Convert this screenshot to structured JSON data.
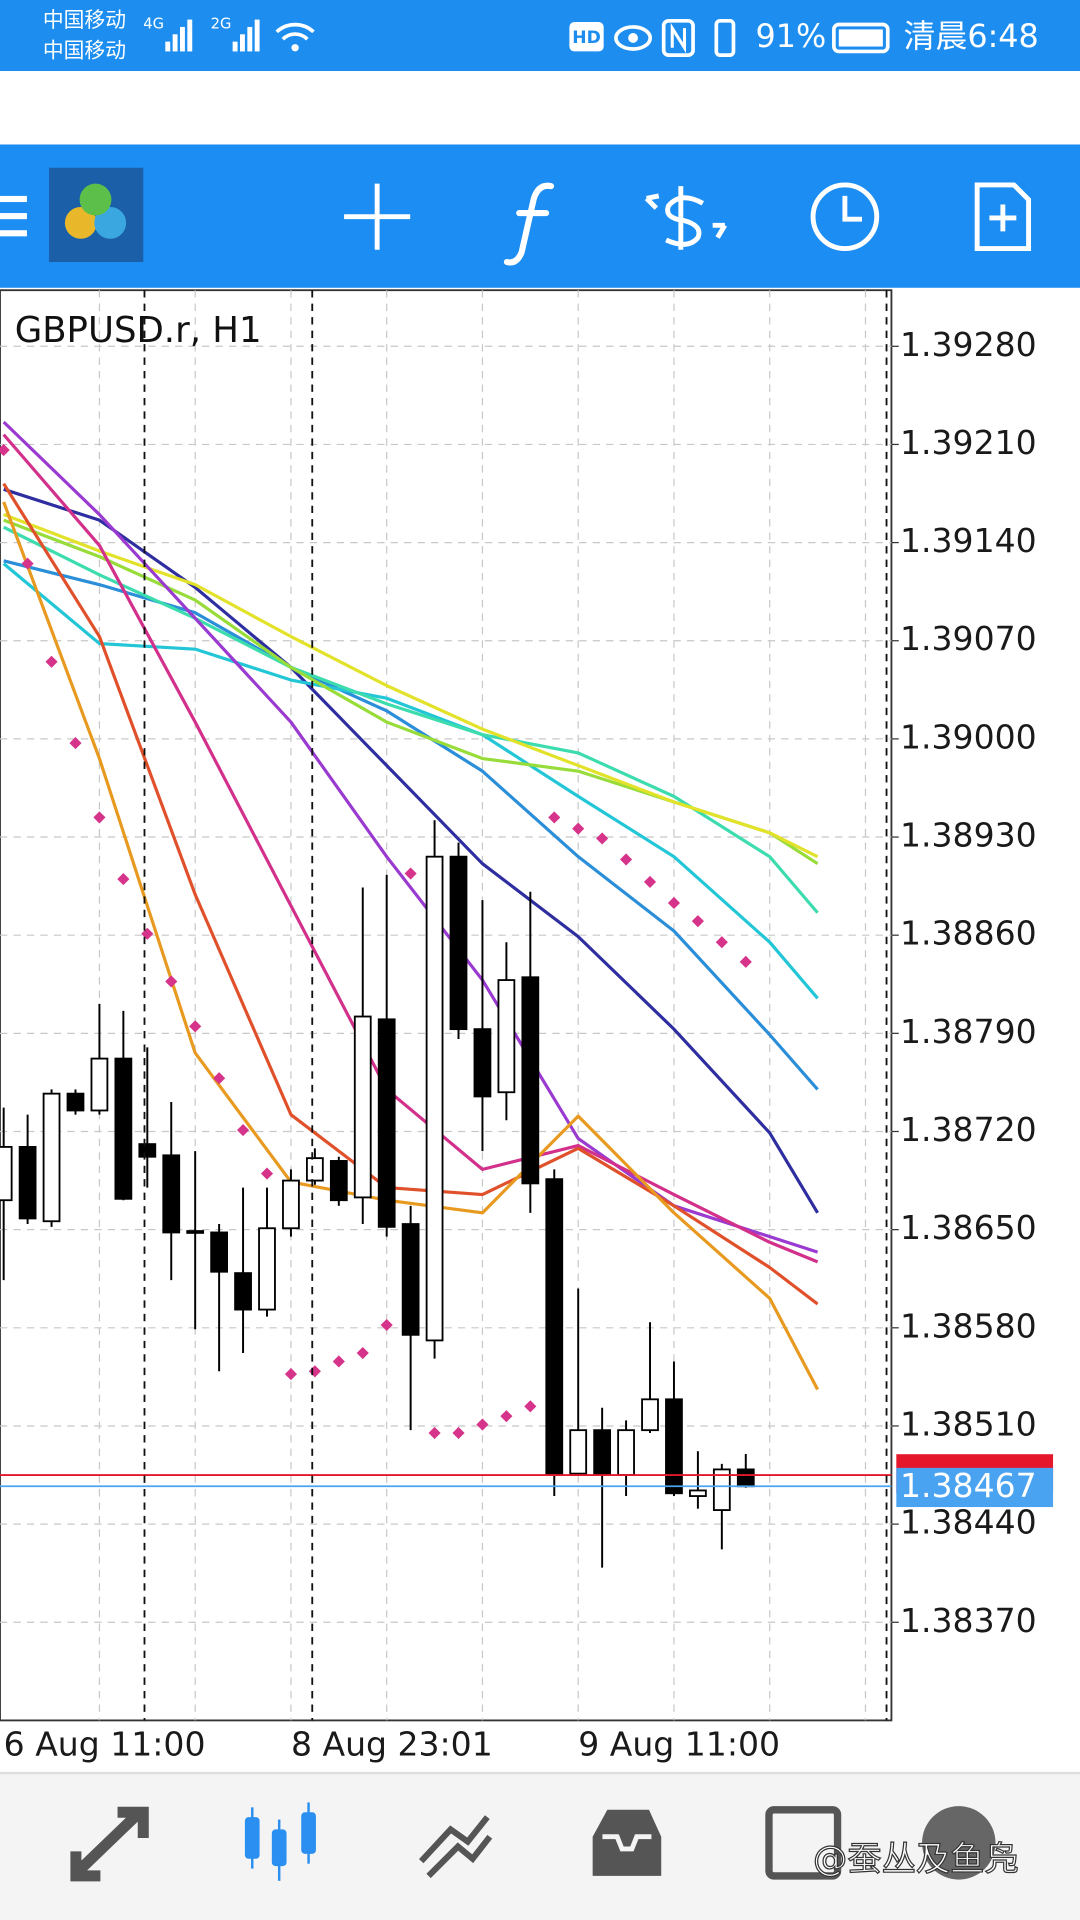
{
  "status_bar": {
    "carrier1": "中国移动",
    "carrier2": "中国移动",
    "network1": "4G",
    "network2": "2G",
    "hd": "HD",
    "battery": "91%",
    "time": "清晨6:48"
  },
  "chart_data": {
    "type": "candlestick",
    "title": "GBPUSD.r, H1",
    "categories": [
      "6 Aug 11:00",
      null,
      null,
      null,
      null,
      null,
      null,
      null,
      null,
      null,
      null,
      null,
      "8 Aug 23:01",
      null,
      null,
      null,
      null,
      null,
      null,
      null,
      null,
      null,
      null,
      null,
      "9 Aug 11:00",
      null,
      null,
      null,
      null,
      null,
      null,
      null
    ],
    "open": [
      1.38671,
      1.38709,
      1.38656,
      1.38747,
      1.38735,
      1.38772,
      1.38711,
      1.38703,
      1.38649,
      1.38648,
      1.38619,
      1.38593,
      1.38651,
      1.38685,
      1.38699,
      1.38673,
      1.388,
      1.38654,
      1.38571,
      1.38916,
      1.38793,
      1.38748,
      1.3883,
      1.38686,
      1.38476,
      1.38507,
      1.38475,
      1.38507,
      1.38529,
      1.3846,
      1.3845,
      1.38479
    ],
    "high": [
      1.38737,
      1.38732,
      1.3875,
      1.3875,
      1.38811,
      1.38806,
      1.3878,
      1.38741,
      1.38706,
      1.38654,
      1.3868,
      1.3868,
      1.38693,
      1.38708,
      1.38702,
      1.38894,
      1.38903,
      1.38667,
      1.38942,
      1.38926,
      1.38885,
      1.38855,
      1.38891,
      1.38693,
      1.38608,
      1.38523,
      1.38514,
      1.38584,
      1.38556,
      1.38492,
      1.38483,
      1.3849
    ],
    "low": [
      1.38614,
      1.38654,
      1.38652,
      1.38732,
      1.38732,
      1.38671,
      1.3868,
      1.38614,
      1.38579,
      1.38549,
      1.38562,
      1.38588,
      1.38645,
      1.38682,
      1.38667,
      1.38654,
      1.38645,
      1.38507,
      1.38558,
      1.38786,
      1.38706,
      1.38728,
      1.38662,
      1.3846,
      1.38475,
      1.38409,
      1.3846,
      1.38505,
      1.3846,
      1.38451,
      1.38422,
      1.38466
    ],
    "close": [
      1.38709,
      1.38658,
      1.38747,
      1.38735,
      1.38772,
      1.38672,
      1.38702,
      1.38648,
      1.38648,
      1.3862,
      1.38593,
      1.38651,
      1.38685,
      1.38701,
      1.38671,
      1.38802,
      1.38652,
      1.38575,
      1.38916,
      1.38793,
      1.38745,
      1.38828,
      1.38683,
      1.38475,
      1.38507,
      1.38475,
      1.38507,
      1.38529,
      1.38462,
      1.38464,
      1.38479,
      1.38467
    ],
    "up_color": "#ffffff",
    "down_color": "#000000",
    "ylim": [
      1.383,
      1.3932
    ],
    "yticks": [
      {
        "value": 1.3928,
        "label": "1.39280"
      },
      {
        "value": 1.3921,
        "label": "1.39210"
      },
      {
        "value": 1.3914,
        "label": "1.39140"
      },
      {
        "value": 1.3907,
        "label": "1.39070"
      },
      {
        "value": 1.39,
        "label": "1.39000"
      },
      {
        "value": 1.3893,
        "label": "1.38930"
      },
      {
        "value": 1.3886,
        "label": "1.38860"
      },
      {
        "value": 1.3879,
        "label": "1.38790"
      },
      {
        "value": 1.3872,
        "label": "1.38720"
      },
      {
        "value": 1.3865,
        "label": "1.38650"
      },
      {
        "value": 1.3858,
        "label": "1.38580"
      },
      {
        "value": 1.3851,
        "label": "1.38510"
      },
      {
        "value": 1.3844,
        "label": "1.38440"
      },
      {
        "value": 1.3837,
        "label": "1.38370"
      }
    ],
    "grid": true,
    "sar": {
      "color": "#d6338a",
      "values": [
        1.39206,
        1.39125,
        1.39055,
        1.38997,
        1.38944,
        1.389,
        1.38861,
        1.38827,
        1.38795,
        1.38758,
        1.38721,
        1.3869,
        1.38547,
        1.38549,
        1.38556,
        1.38562,
        1.38582,
        1.38904,
        1.38505,
        1.38505,
        1.38511,
        1.38517,
        1.38524,
        1.38944,
        1.38936,
        1.38929,
        1.38914,
        1.38898,
        1.38883,
        1.3887,
        1.38855,
        1.38841
      ]
    },
    "ma": {
      "x": [
        0,
        4,
        8,
        12,
        16,
        20,
        24,
        28,
        32,
        34
      ],
      "series": [
        {
          "color": "#2e2ea0",
          "values": [
            1.39178,
            1.39156,
            1.39108,
            1.39051,
            1.38981,
            1.38911,
            1.38859,
            1.38793,
            1.38719,
            1.38662
          ]
        },
        {
          "color": "#2a8ed8",
          "values": [
            1.39127,
            1.3911,
            1.3909,
            1.39051,
            1.3902,
            1.38977,
            1.38916,
            1.38863,
            1.38789,
            1.3875
          ]
        },
        {
          "color": "#22c6d6",
          "values": [
            1.39125,
            1.39068,
            1.39064,
            1.39042,
            1.39029,
            1.39003,
            1.38959,
            1.38916,
            1.38855,
            1.38815
          ]
        },
        {
          "color": "#3ddcae",
          "values": [
            1.39151,
            1.39117,
            1.39086,
            1.39051,
            1.39025,
            1.39003,
            1.3899,
            1.38959,
            1.38916,
            1.38876
          ]
        },
        {
          "color": "#98dc3a",
          "values": [
            1.39156,
            1.3913,
            1.39099,
            1.39051,
            1.39012,
            1.38986,
            1.38977,
            1.38955,
            1.38933,
            1.38911
          ]
        },
        {
          "color": "#e2e22a",
          "values": [
            1.3916,
            1.39134,
            1.3911,
            1.39073,
            1.39038,
            1.39007,
            1.38981,
            1.38955,
            1.38933,
            1.38916
          ]
        },
        {
          "color": "#9a3ad0",
          "values": [
            1.39226,
            1.3916,
            1.39086,
            1.39012,
            1.38916,
            1.38828,
            1.38715,
            1.38667,
            1.38645,
            1.38634
          ]
        },
        {
          "color": "#d2308a",
          "values": [
            1.39217,
            1.39138,
            1.39012,
            1.38881,
            1.3875,
            1.38693,
            1.3871,
            1.38675,
            1.38641,
            1.38627
          ]
        },
        {
          "color": "#e0502a",
          "values": [
            1.39182,
            1.39073,
            1.38889,
            1.38732,
            1.3868,
            1.38675,
            1.38708,
            1.38667,
            1.38623,
            1.38597
          ]
        },
        {
          "color": "#e89a20",
          "values": [
            1.39169,
            1.38986,
            1.38776,
            1.38684,
            1.38671,
            1.38662,
            1.38731,
            1.38662,
            1.38601,
            1.38536
          ]
        }
      ]
    },
    "ask": {
      "value": 1.38475,
      "color": "#e5172b"
    },
    "bid": {
      "value": 1.38467,
      "color": "#4aa3f0"
    }
  },
  "watermark": "@蚕丛及鱼凫"
}
